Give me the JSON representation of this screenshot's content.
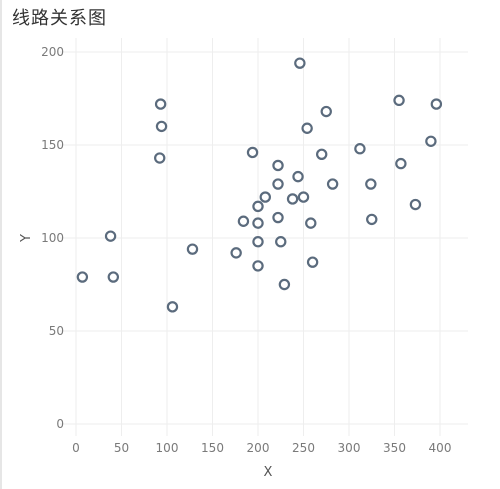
{
  "page": {
    "title": "线路关系图"
  },
  "chart_data": {
    "type": "scatter",
    "title": "线路关系图",
    "xlabel": "X",
    "ylabel": "Y",
    "xlim": [
      0,
      420
    ],
    "ylim": [
      -5,
      205
    ],
    "x_ticks": [
      0,
      50,
      100,
      150,
      200,
      250,
      300,
      350,
      400
    ],
    "y_ticks": [
      0,
      50,
      100,
      150,
      200
    ],
    "grid": true,
    "legend": "none",
    "colors": {
      "marker_stroke": "#5b6b7d",
      "grid": "#eeeeee"
    },
    "series": [
      {
        "points": [
          {
            "x": 7,
            "y": 79
          },
          {
            "x": 38,
            "y": 101
          },
          {
            "x": 41,
            "y": 79
          },
          {
            "x": 92,
            "y": 143
          },
          {
            "x": 93,
            "y": 172
          },
          {
            "x": 94,
            "y": 160
          },
          {
            "x": 106,
            "y": 63
          },
          {
            "x": 128,
            "y": 94
          },
          {
            "x": 176,
            "y": 92
          },
          {
            "x": 184,
            "y": 109
          },
          {
            "x": 194,
            "y": 146
          },
          {
            "x": 200,
            "y": 117
          },
          {
            "x": 200,
            "y": 98
          },
          {
            "x": 200,
            "y": 108
          },
          {
            "x": 200,
            "y": 85
          },
          {
            "x": 208,
            "y": 122
          },
          {
            "x": 222,
            "y": 139
          },
          {
            "x": 222,
            "y": 129
          },
          {
            "x": 222,
            "y": 111
          },
          {
            "x": 225,
            "y": 98
          },
          {
            "x": 229,
            "y": 75
          },
          {
            "x": 238,
            "y": 121
          },
          {
            "x": 244,
            "y": 133
          },
          {
            "x": 246,
            "y": 194
          },
          {
            "x": 250,
            "y": 122
          },
          {
            "x": 254,
            "y": 159
          },
          {
            "x": 258,
            "y": 108
          },
          {
            "x": 260,
            "y": 87
          },
          {
            "x": 270,
            "y": 145
          },
          {
            "x": 275,
            "y": 168
          },
          {
            "x": 282,
            "y": 129
          },
          {
            "x": 312,
            "y": 148
          },
          {
            "x": 324,
            "y": 129
          },
          {
            "x": 325,
            "y": 110
          },
          {
            "x": 355,
            "y": 174
          },
          {
            "x": 357,
            "y": 140
          },
          {
            "x": 373,
            "y": 118
          },
          {
            "x": 390,
            "y": 152
          },
          {
            "x": 396,
            "y": 172
          }
        ]
      }
    ]
  }
}
